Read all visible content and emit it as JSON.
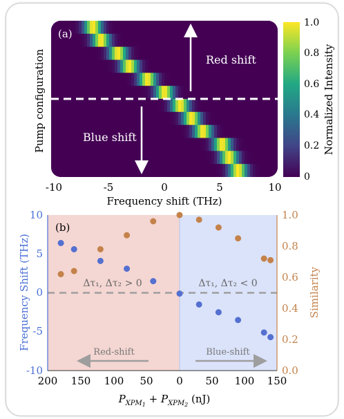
{
  "chart_data": [
    {
      "type": "heatmap",
      "panel_label": "(a)",
      "xlabel": "Frequency shift (THz)",
      "ylabel": "Pump configuration",
      "xlim": [
        -10,
        10
      ],
      "xticks": [
        "-10",
        "-5",
        "0",
        "5",
        "10"
      ],
      "colorbar": {
        "label": "Normalized Intensity",
        "range": [
          0,
          1
        ],
        "ticks": [
          "0",
          "0.2",
          "0.4",
          "0.6",
          "0.8",
          "1.0"
        ],
        "colormap": "viridis"
      },
      "rows_top_to_bottom_peak_thz": [
        -6.3,
        -5.6,
        -4.1,
        -3.1,
        -1.5,
        0.0,
        1.4,
        2.4,
        3.4,
        5.1,
        5.7,
        6.5
      ],
      "annotations": {
        "red_shift": "Red shift",
        "blue_shift": "Blue shift"
      },
      "divider": "dashed white line at center row"
    },
    {
      "type": "scatter",
      "panel_label": "(b)",
      "xlabel_main": "P",
      "xlabel_sub1": "XPM",
      "xlabel_sub1b": "1",
      "xlabel_plus": " + P",
      "xlabel_sub2": "XPM",
      "xlabel_sub2b": "2",
      "xlabel_units": " (nJ)",
      "ylabel_left": "Frequency Shift (THz)",
      "ylabel_right": "Similarity",
      "ylim_left": [
        -10,
        10
      ],
      "ylim_right": [
        0,
        1
      ],
      "yticks_left": [
        "10",
        "5",
        "0",
        "-5",
        "-10"
      ],
      "yticks_right": [
        "1.0",
        "0.8",
        "0.6",
        "0.4",
        "0.2",
        "0.0"
      ],
      "xticks_left": [
        "200",
        "150",
        "100",
        "50",
        "0"
      ],
      "xticks_right": [
        "50",
        "100",
        "150"
      ],
      "series": [
        {
          "name": "Frequency Shift",
          "color": "#5470d0",
          "axis": "left",
          "points": [
            {
              "side": "left",
              "x": 180,
              "y": 6.4
            },
            {
              "side": "left",
              "x": 160,
              "y": 5.6
            },
            {
              "side": "left",
              "x": 120,
              "y": 4.1
            },
            {
              "side": "left",
              "x": 80,
              "y": 3.1
            },
            {
              "side": "left",
              "x": 40,
              "y": 1.5
            },
            {
              "side": "right",
              "x": 0,
              "y": -0.1
            },
            {
              "side": "right",
              "x": 30,
              "y": -1.5
            },
            {
              "side": "right",
              "x": 60,
              "y": -2.5
            },
            {
              "side": "right",
              "x": 90,
              "y": -3.5
            },
            {
              "side": "right",
              "x": 130,
              "y": -5.1
            },
            {
              "side": "right",
              "x": 140,
              "y": -5.7
            }
          ]
        },
        {
          "name": "Similarity",
          "color": "#c4824a",
          "axis": "right",
          "points": [
            {
              "side": "left",
              "x": 180,
              "y": 0.62
            },
            {
              "side": "left",
              "x": 160,
              "y": 0.64
            },
            {
              "side": "left",
              "x": 120,
              "y": 0.78
            },
            {
              "side": "left",
              "x": 80,
              "y": 0.87
            },
            {
              "side": "left",
              "x": 40,
              "y": 0.96
            },
            {
              "side": "right",
              "x": 0,
              "y": 1.0
            },
            {
              "side": "right",
              "x": 30,
              "y": 0.97
            },
            {
              "side": "right",
              "x": 60,
              "y": 0.92
            },
            {
              "side": "right",
              "x": 90,
              "y": 0.85
            },
            {
              "side": "right",
              "x": 130,
              "y": 0.72
            },
            {
              "side": "right",
              "x": 140,
              "y": 0.71
            }
          ]
        }
      ],
      "region_left_label": "Δτ₁, Δτ₂ > 0",
      "region_right_label": "Δτ₁, Δτ₂ < 0",
      "arrow_left_label": "Red-shift",
      "arrow_right_label": "Blue-shift",
      "colors": {
        "left_region": "#f4d6d2",
        "right_region": "#dbe3fa",
        "left_axis": "#4a6fd6",
        "right_axis": "#c4824a"
      }
    }
  ]
}
